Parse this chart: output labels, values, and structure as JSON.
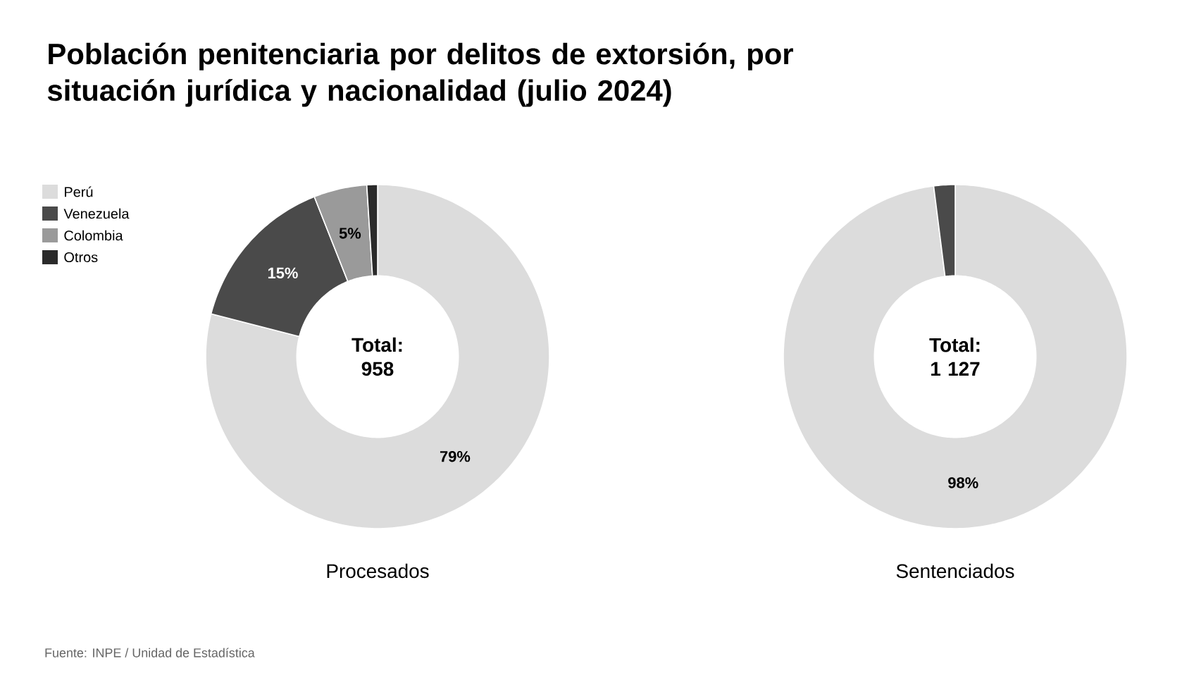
{
  "chart_data": [
    {
      "type": "donut",
      "title": "Población penitenciaria por delitos de extorsión, por situación jurídica y nacionalidad (julio 2024)",
      "xlabel": "Procesados",
      "categories": [
        "Perú",
        "Venezuela",
        "Colombia",
        "Otros"
      ],
      "values": [
        79,
        15,
        5,
        1
      ],
      "colors": [
        "#dcdcdc",
        "#4a4a4a",
        "#9a9a9a",
        "#2a2a2a"
      ],
      "value_labels": [
        "79%",
        "15%",
        "5%",
        null
      ],
      "legend": "top left",
      "annotations": [
        "Total: 958",
        "Fuente: INPE / Unidad de Estadística"
      ]
    },
    {
      "type": "donut",
      "xlabel": "Sentenciados",
      "categories": [
        null,
        null
      ],
      "values": [
        98,
        2
      ],
      "colors": [
        "#dcdcdc",
        "#4a4a4a"
      ],
      "value_labels": [
        "98%",
        null
      ],
      "annotations": [
        "Total: 1 127"
      ]
    }
  ]
}
